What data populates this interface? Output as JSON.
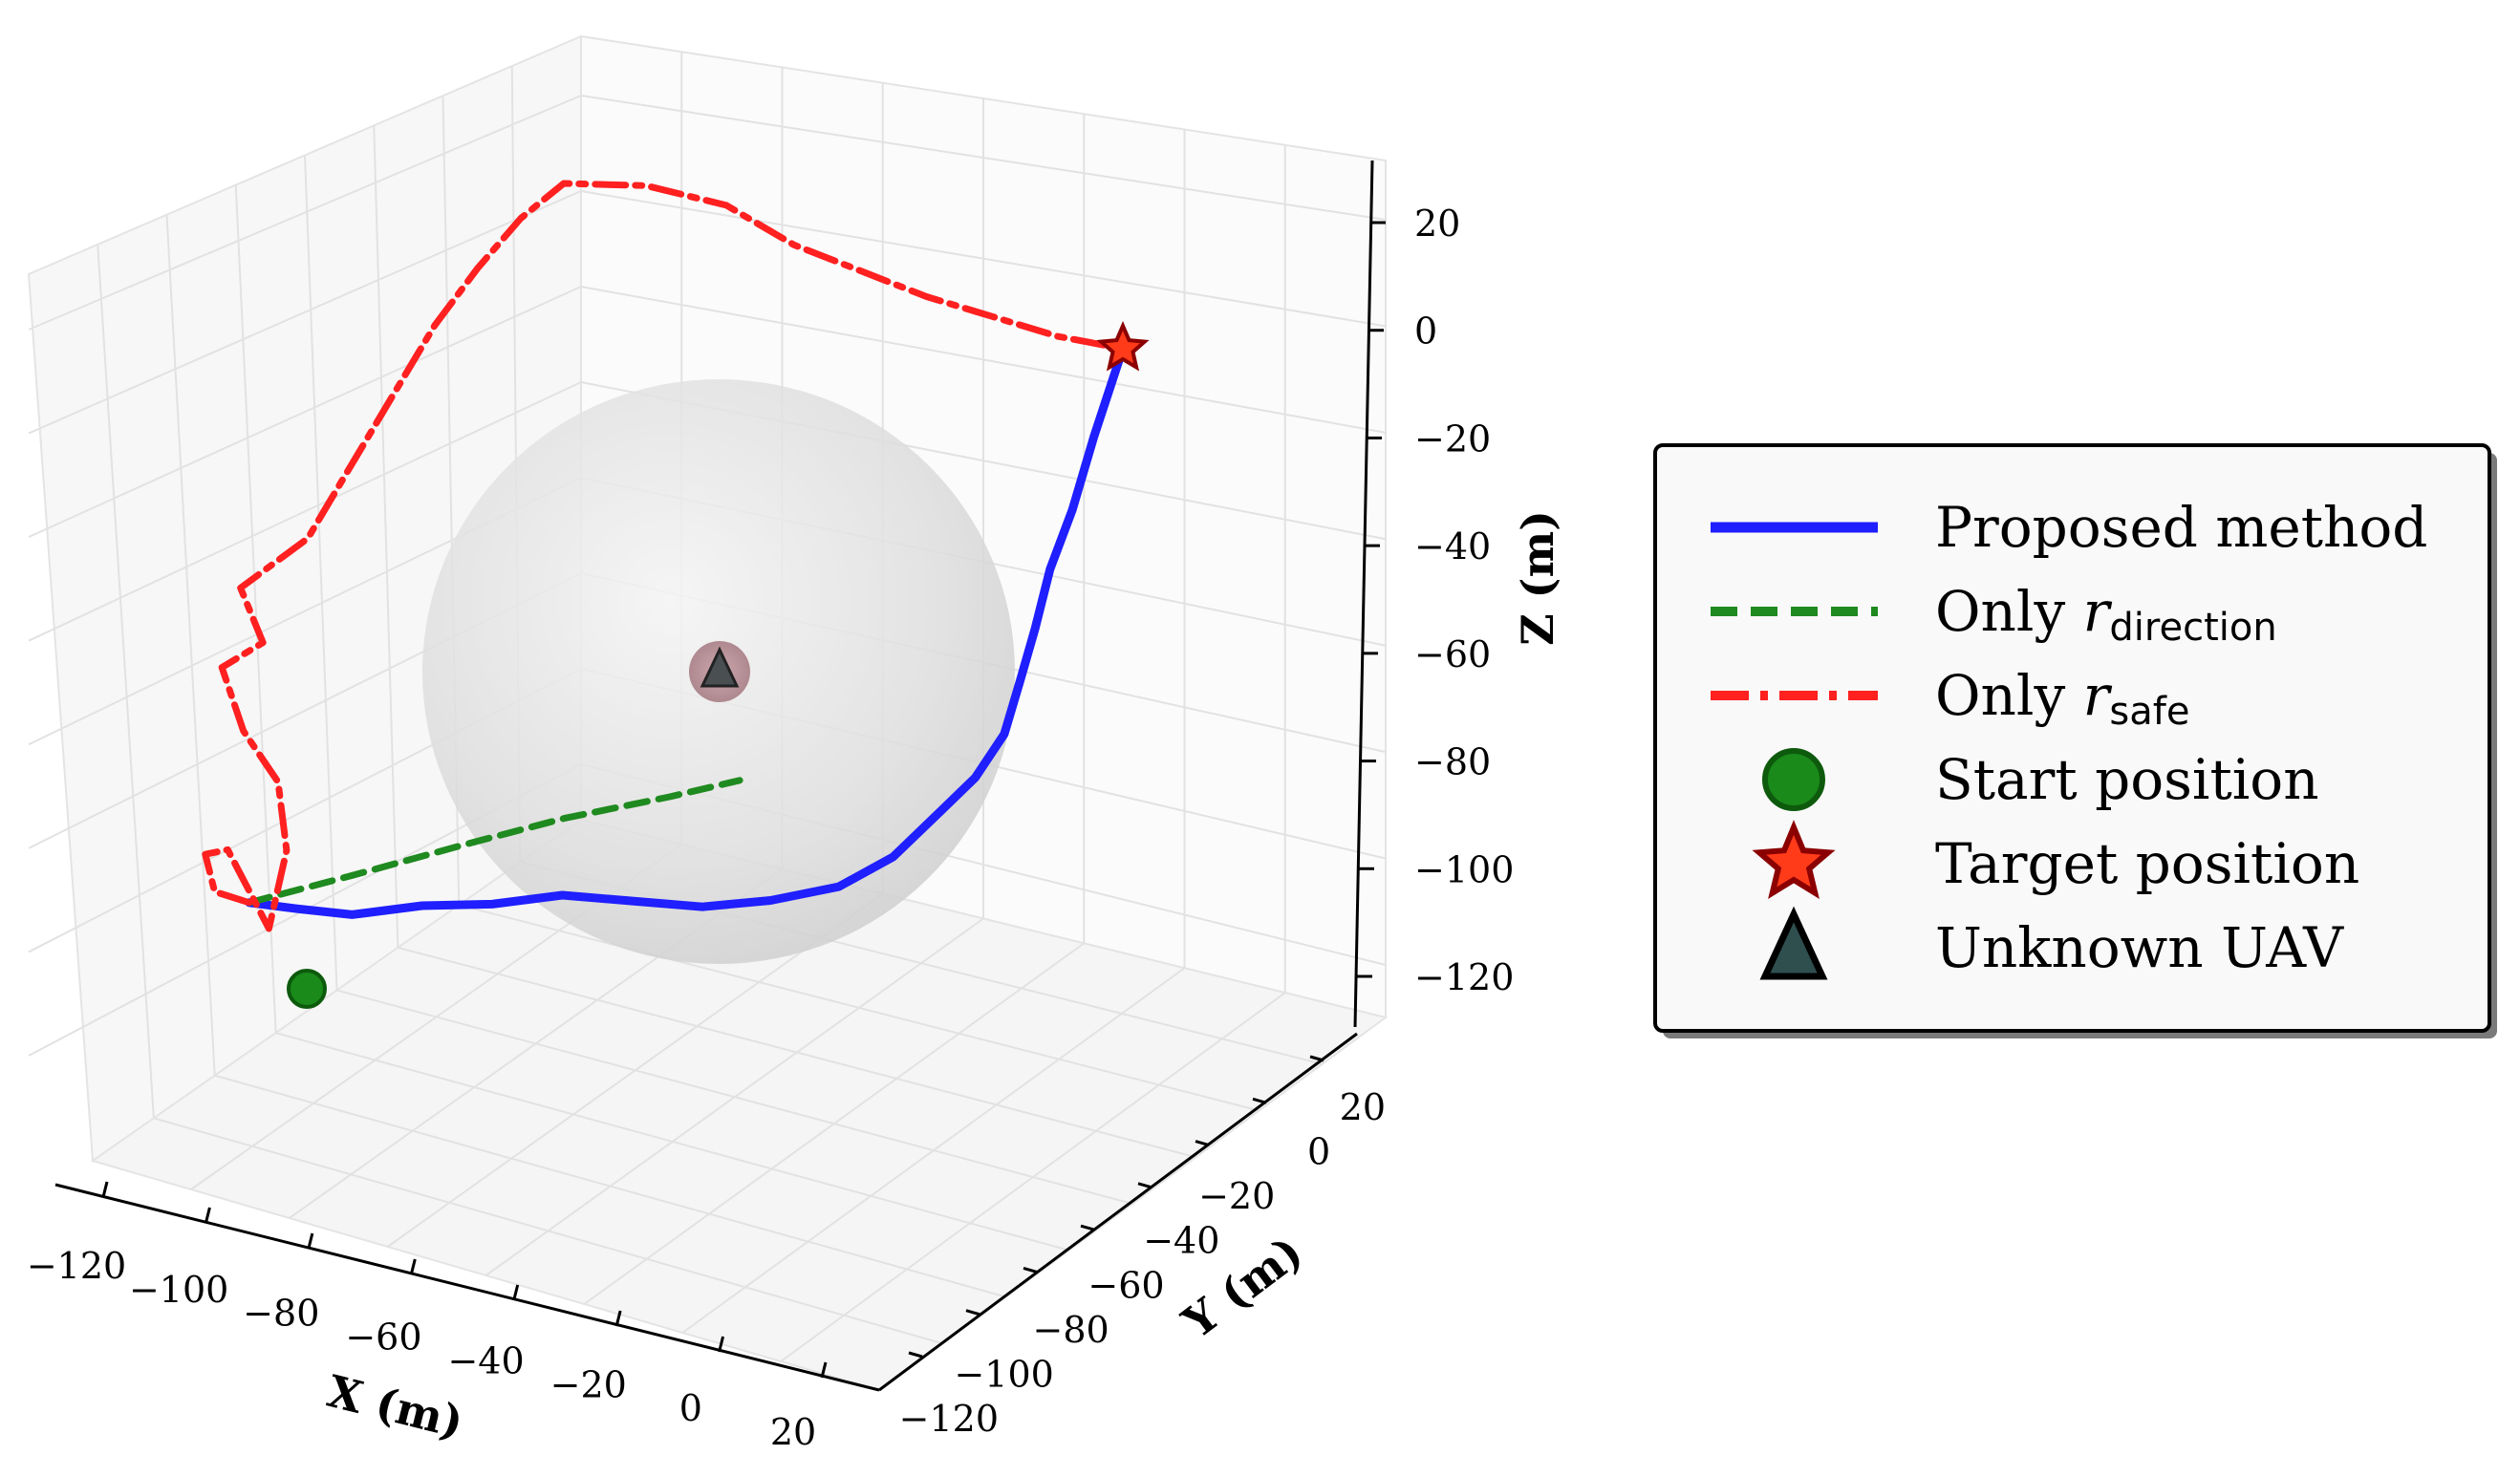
{
  "chart_data": {
    "type": "line",
    "projection": "3d",
    "axes": {
      "x": {
        "label": "X (m)",
        "ticks": [
          "−120",
          "−100",
          "−80",
          "−60",
          "−40",
          "−20",
          "0",
          "20"
        ],
        "range": [
          -125,
          25
        ]
      },
      "y": {
        "label": "Y (m)",
        "ticks": [
          "−120",
          "−100",
          "−80",
          "−60",
          "−40",
          "−20",
          "0",
          "20"
        ],
        "range": [
          -125,
          25
        ]
      },
      "z": {
        "label": "Z (m)",
        "ticks": [
          "20",
          "0",
          "−20",
          "−40",
          "−60",
          "−80",
          "−100",
          "−120"
        ],
        "range": [
          -130,
          30
        ]
      }
    },
    "grid": true,
    "legend_position": "right",
    "legend": [
      {
        "label": "Proposed method",
        "sub": ""
      },
      {
        "label": "Only ",
        "var": "r",
        "sub": "direction"
      },
      {
        "label": "Only ",
        "var": "r",
        "sub": "safe"
      },
      {
        "label": "Start position",
        "sub": ""
      },
      {
        "label": "Target position",
        "sub": ""
      },
      {
        "label": "Unknown UAV",
        "sub": ""
      }
    ],
    "colors": {
      "proposed": "#1f1fff",
      "direction": "#1f8a1f",
      "safe": "#ff2020",
      "start": "#1a8a1a",
      "target": "#b01010",
      "uav": "#2f4f4f",
      "sphere": "#d9d9d9"
    },
    "points": {
      "start": {
        "x": -115,
        "y": -60,
        "z": -85
      },
      "target": {
        "x": 10,
        "y": 0,
        "z": 0
      },
      "unknown_uav": {
        "x": -40,
        "y": -20,
        "z": -60
      }
    },
    "series": [
      {
        "name": "Proposed method",
        "style": "solid",
        "points": [
          [
            -115,
            -60,
            -85
          ],
          [
            -108,
            -58,
            -85
          ],
          [
            -100,
            -55,
            -85
          ],
          [
            -90,
            -50,
            -83
          ],
          [
            -80,
            -45,
            -82
          ],
          [
            -70,
            -40,
            -80
          ],
          [
            -60,
            -35,
            -80
          ],
          [
            -50,
            -30,
            -80
          ],
          [
            -40,
            -27,
            -78
          ],
          [
            -30,
            -24,
            -75
          ],
          [
            -22,
            -22,
            -70
          ],
          [
            -15,
            -20,
            -63
          ],
          [
            -10,
            -18,
            -58
          ],
          [
            -6,
            -15,
            -52
          ],
          [
            -4,
            -12,
            -45
          ],
          [
            -2,
            -10,
            -38
          ],
          [
            0,
            -8,
            -30
          ],
          [
            3,
            -5,
            -22
          ],
          [
            6,
            -3,
            -12
          ],
          [
            10,
            0,
            0
          ]
        ]
      },
      {
        "name": "Only r_direction",
        "style": "dashed",
        "points": [
          [
            -115,
            -60,
            -85
          ],
          [
            -100,
            -53,
            -80
          ],
          [
            -85,
            -45,
            -75
          ],
          [
            -70,
            -38,
            -70
          ],
          [
            -55,
            -30,
            -66
          ],
          [
            -45,
            -25,
            -63
          ]
        ]
      },
      {
        "name": "Only r_safe",
        "style": "dashdot",
        "points": [
          [
            -115,
            -60,
            -85
          ],
          [
            -120,
            -62,
            -84
          ],
          [
            -122,
            -58,
            -80
          ],
          [
            -118,
            -62,
            -78
          ],
          [
            -112,
            -60,
            -88
          ],
          [
            -110,
            -55,
            -78
          ],
          [
            -112,
            -50,
            -70
          ],
          [
            -118,
            -45,
            -65
          ],
          [
            -122,
            -40,
            -58
          ],
          [
            -116,
            -38,
            -54
          ],
          [
            -120,
            -34,
            -48
          ],
          [
            -110,
            -32,
            -40
          ],
          [
            -104,
            -30,
            -30
          ],
          [
            -98,
            -26,
            -20
          ],
          [
            -92,
            -22,
            -10
          ],
          [
            -86,
            -18,
            -2
          ],
          [
            -80,
            -14,
            5
          ],
          [
            -74,
            -10,
            10
          ],
          [
            -62,
            -6,
            11
          ],
          [
            -50,
            -4,
            10
          ],
          [
            -40,
            -2,
            6
          ],
          [
            -30,
            -1,
            4
          ],
          [
            -20,
            0,
            2
          ],
          [
            -10,
            0,
            1
          ],
          [
            0,
            0,
            0
          ],
          [
            10,
            0,
            0
          ]
        ]
      }
    ]
  }
}
